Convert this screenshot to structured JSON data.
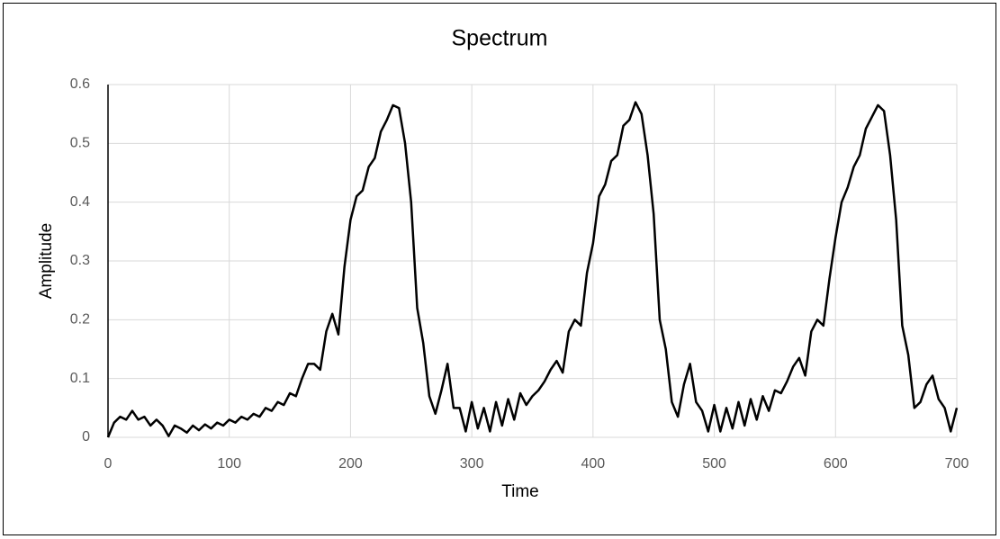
{
  "chart_data": {
    "type": "line",
    "title": "Spectrum",
    "x_label": "Time",
    "y_label": "Amplitude",
    "x": [
      0,
      5,
      10,
      15,
      20,
      25,
      30,
      35,
      40,
      45,
      50,
      55,
      60,
      65,
      70,
      75,
      80,
      85,
      90,
      95,
      100,
      105,
      110,
      115,
      120,
      125,
      130,
      135,
      140,
      145,
      150,
      155,
      160,
      165,
      170,
      175,
      180,
      185,
      190,
      195,
      200,
      205,
      210,
      215,
      220,
      225,
      230,
      235,
      240,
      245,
      250,
      255,
      260,
      265,
      270,
      275,
      280,
      285,
      290,
      295,
      300,
      305,
      310,
      315,
      320,
      325,
      330,
      335,
      340,
      345,
      350,
      355,
      360,
      365,
      370,
      375,
      380,
      385,
      390,
      395,
      400,
      405,
      410,
      415,
      420,
      425,
      430,
      435,
      440,
      445,
      450,
      455,
      460,
      465,
      470,
      475,
      480,
      485,
      490,
      495,
      500,
      505,
      510,
      515,
      520,
      525,
      530,
      535,
      540,
      545,
      550,
      555,
      560,
      565,
      570,
      575,
      580,
      585,
      590,
      595,
      600,
      605,
      610,
      615,
      620,
      625,
      630,
      635,
      640,
      645,
      650,
      655,
      660,
      665,
      670,
      675,
      680,
      685,
      690,
      695,
      700
    ],
    "series": [
      {
        "name": "Amplitude",
        "color": "#000000",
        "values": [
          0,
          0.025,
          0.035,
          0.03,
          0.045,
          0.03,
          0.035,
          0.02,
          0.03,
          0.02,
          0.002,
          0.02,
          0.015,
          0.008,
          0.02,
          0.012,
          0.022,
          0.015,
          0.025,
          0.02,
          0.03,
          0.025,
          0.035,
          0.03,
          0.04,
          0.035,
          0.05,
          0.045,
          0.06,
          0.055,
          0.075,
          0.07,
          0.1,
          0.125,
          0.125,
          0.115,
          0.18,
          0.21,
          0.175,
          0.29,
          0.37,
          0.41,
          0.42,
          0.46,
          0.475,
          0.52,
          0.54,
          0.565,
          0.56,
          0.5,
          0.4,
          0.22,
          0.16,
          0.07,
          0.04,
          0.08,
          0.125,
          0.05,
          0.05,
          0.01,
          0.06,
          0.015,
          0.05,
          0.01,
          0.06,
          0.02,
          0.065,
          0.03,
          0.075,
          0.055,
          0.07,
          0.08,
          0.095,
          0.115,
          0.13,
          0.11,
          0.18,
          0.2,
          0.19,
          0.28,
          0.33,
          0.41,
          0.43,
          0.47,
          0.48,
          0.53,
          0.54,
          0.57,
          0.55,
          0.48,
          0.38,
          0.2,
          0.15,
          0.06,
          0.035,
          0.09,
          0.125,
          0.06,
          0.045,
          0.01,
          0.055,
          0.01,
          0.05,
          0.015,
          0.06,
          0.02,
          0.065,
          0.03,
          0.07,
          0.045,
          0.08,
          0.075,
          0.095,
          0.12,
          0.135,
          0.105,
          0.18,
          0.2,
          0.19,
          0.27,
          0.34,
          0.4,
          0.425,
          0.46,
          0.48,
          0.525,
          0.545,
          0.565,
          0.555,
          0.48,
          0.37,
          0.19,
          0.14,
          0.05,
          0.06,
          0.09,
          0.105,
          0.065,
          0.05,
          0.01,
          0.05
        ]
      }
    ],
    "xlim": [
      0,
      700
    ],
    "xticks": [
      0,
      100,
      200,
      300,
      400,
      500,
      600,
      700
    ],
    "ylim": [
      0,
      0.6
    ],
    "yticks": [
      0,
      0.1,
      0.2,
      0.3,
      0.4,
      0.5,
      0.6
    ],
    "grid": true
  }
}
